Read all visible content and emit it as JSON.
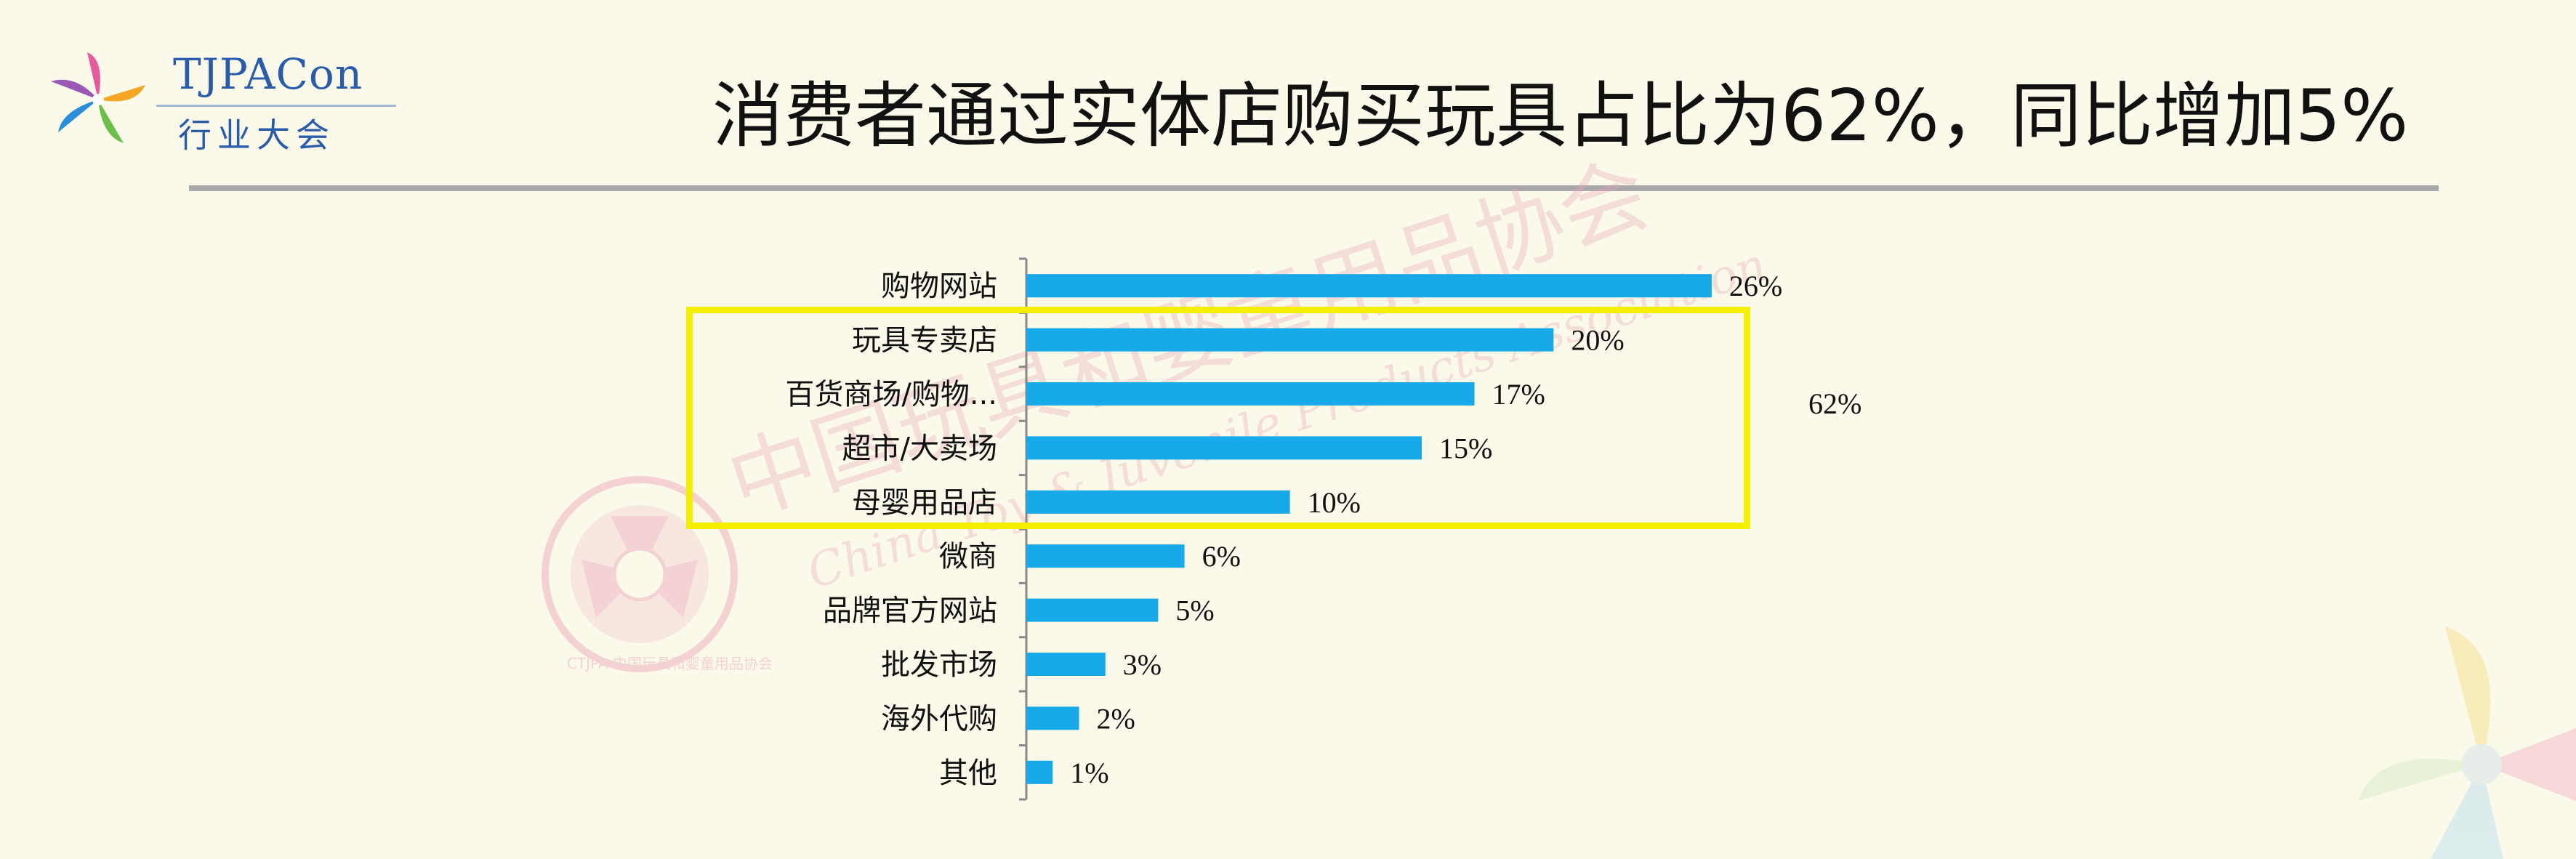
{
  "logo": {
    "name": "TJPACon",
    "subtitle": "行业大会",
    "colors": [
      "#e85b9a",
      "#f5a623",
      "#6cc04a",
      "#2a8fd8",
      "#9b59b6"
    ]
  },
  "slide": {
    "title": "消费者通过实体店购买玩具占比为62%，同比增加5%"
  },
  "watermark": {
    "text_cn": "中国玩具和婴童用品协会",
    "text_en": "China Toy & Juvenile Products Association",
    "seal_text": "CTJPA 中国玩具和婴童用品协会"
  },
  "highlight": {
    "label": "62%",
    "color": "#f5f000"
  },
  "chart_data": {
    "type": "bar",
    "orientation": "horizontal",
    "categories": [
      "购物网站",
      "玩具专卖店",
      "百货商场/购物...",
      "超市/大卖场",
      "母婴用品店",
      "微商",
      "品牌官方网站",
      "批发市场",
      "海外代购",
      "其他"
    ],
    "values": [
      26,
      20,
      17,
      15,
      10,
      6,
      5,
      3,
      2,
      1
    ],
    "value_labels": [
      "26%",
      "20%",
      "17%",
      "15%",
      "10%",
      "6%",
      "5%",
      "3%",
      "2%",
      "1%"
    ],
    "unit": "%",
    "bar_color": "#17a9e8",
    "xlim": [
      0,
      30
    ],
    "grid": false,
    "legend": "none",
    "highlighted_categories": [
      "玩具专卖店",
      "百货商场/购物...",
      "超市/大卖场",
      "母婴用品店"
    ]
  }
}
